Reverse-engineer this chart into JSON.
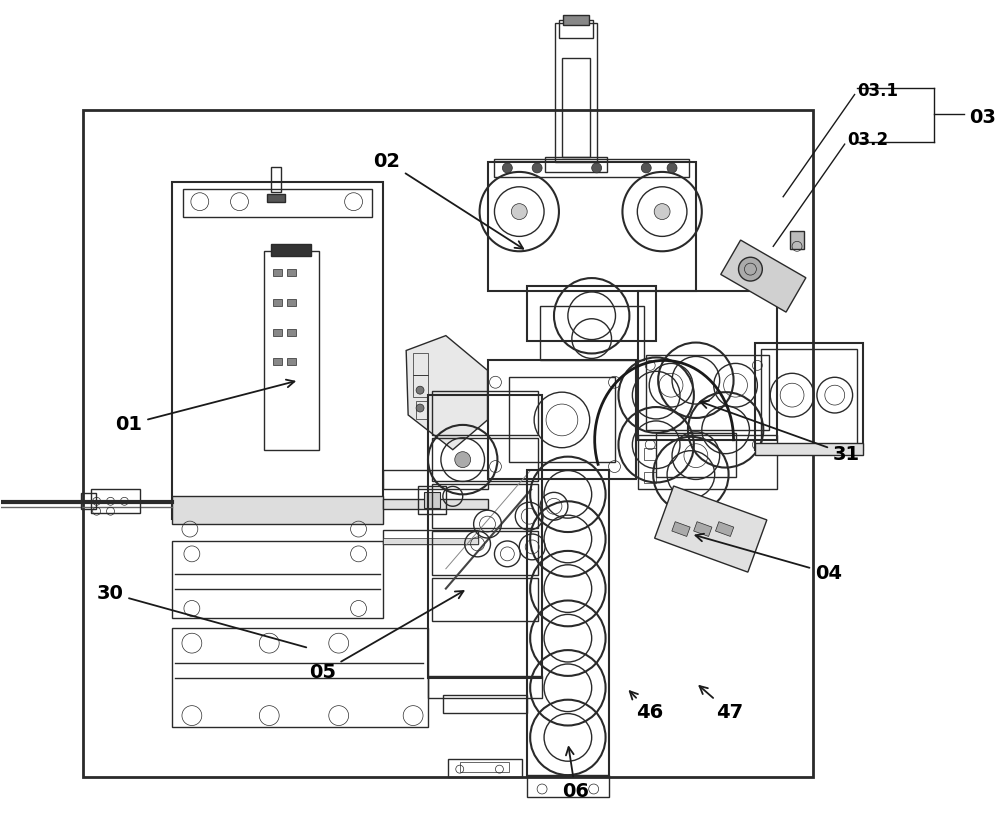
{
  "fig_width": 10.0,
  "fig_height": 8.24,
  "dpi": 100,
  "bg_color": "#ffffff",
  "line_color": "#2a2a2a",
  "line_width": 1.0,
  "fontsize": 13,
  "fontweight": "bold",
  "label_color": "#000000"
}
